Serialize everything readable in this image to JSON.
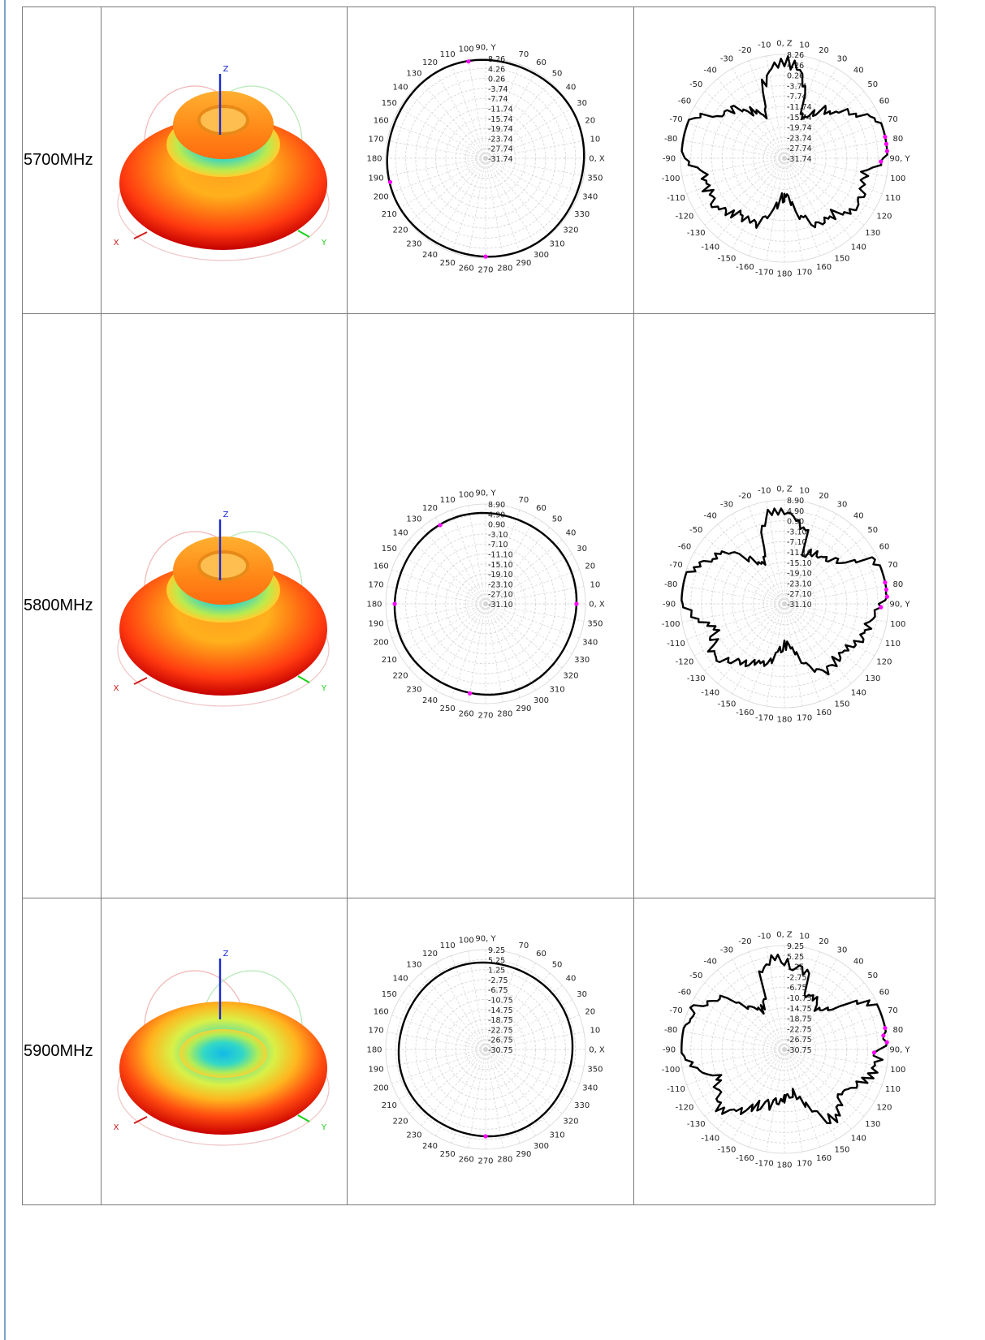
{
  "rows": [
    {
      "frequency": "5700MHz",
      "xy_ring": [
        "8.26",
        "4.26",
        "0.26",
        "-3.74",
        "-7.74",
        "-11.74",
        "-15.74",
        "-19.74",
        "-23.74",
        "-27.74",
        "-31.74"
      ],
      "z_ring": [
        "8.26",
        "4.26",
        "0.26",
        "-3.74",
        "-7.74",
        "-11.74",
        "-15.74",
        "-19.74",
        "-23.74",
        "-27.74",
        "-31.74"
      ],
      "xy_axis_label": "90, Y",
      "z_axis_label": "0, Z"
    },
    {
      "frequency": "5800MHz",
      "xy_ring": [
        "8.90",
        "4.90",
        "0.90",
        "-3.10",
        "-7.10",
        "-11.10",
        "-15.10",
        "-19.10",
        "-23.10",
        "-27.10",
        "-31.10"
      ],
      "z_ring": [
        "8.90",
        "4.90",
        "0.90",
        "-3.10",
        "-7.10",
        "-11.10",
        "-15.10",
        "-19.10",
        "-23.10",
        "-27.10",
        "-31.10"
      ],
      "xy_axis_label": "90, Y",
      "z_axis_label": "0, Z"
    },
    {
      "frequency": "5900MHz",
      "xy_ring": [
        "9.25",
        "5.25",
        "1.25",
        "-2.75",
        "-6.75",
        "-10.75",
        "-14.75",
        "-18.75",
        "-22.75",
        "-26.75",
        "-30.75"
      ],
      "z_ring": [
        "9.25",
        "5.25",
        "1.25",
        "-2.75",
        "-6.75",
        "-10.75",
        "-14.75",
        "-18.75",
        "-22.75",
        "-26.75",
        "-30.75"
      ],
      "xy_axis_label": "90, Y",
      "z_axis_label": "0, Z"
    }
  ],
  "plot3d_axes": {
    "x": "X",
    "y": "Y",
    "z": "Z"
  },
  "xy_angle_labels": [
    "0, X",
    "10",
    "20",
    "30",
    "40",
    "50",
    "60",
    "70",
    "90, Y",
    "100",
    "110",
    "120",
    "130",
    "140",
    "150",
    "160",
    "170",
    "180",
    "190",
    "200",
    "210",
    "220",
    "230",
    "240",
    "250",
    "260",
    "270",
    "280",
    "290",
    "300",
    "310",
    "320",
    "330",
    "340",
    "350"
  ],
  "z_angle_labels": [
    "0, Z",
    "10",
    "20",
    "30",
    "40",
    "50",
    "60",
    "70",
    "80",
    "90, Y",
    "100",
    "110",
    "120",
    "130",
    "140",
    "150",
    "160",
    "170",
    "180",
    "-170",
    "-160",
    "-150",
    "-140",
    "-130",
    "-120",
    "-110",
    "-100",
    "-90",
    "-80",
    "-70",
    "-60",
    "-50",
    "-40",
    "-30",
    "-20",
    "-10"
  ],
  "colors": {
    "border": "#7a7a7a",
    "trace": "#000000",
    "marker": "#ff00ff",
    "grid": "#d4d4d4",
    "accent_rule": "#7da2c8"
  }
}
